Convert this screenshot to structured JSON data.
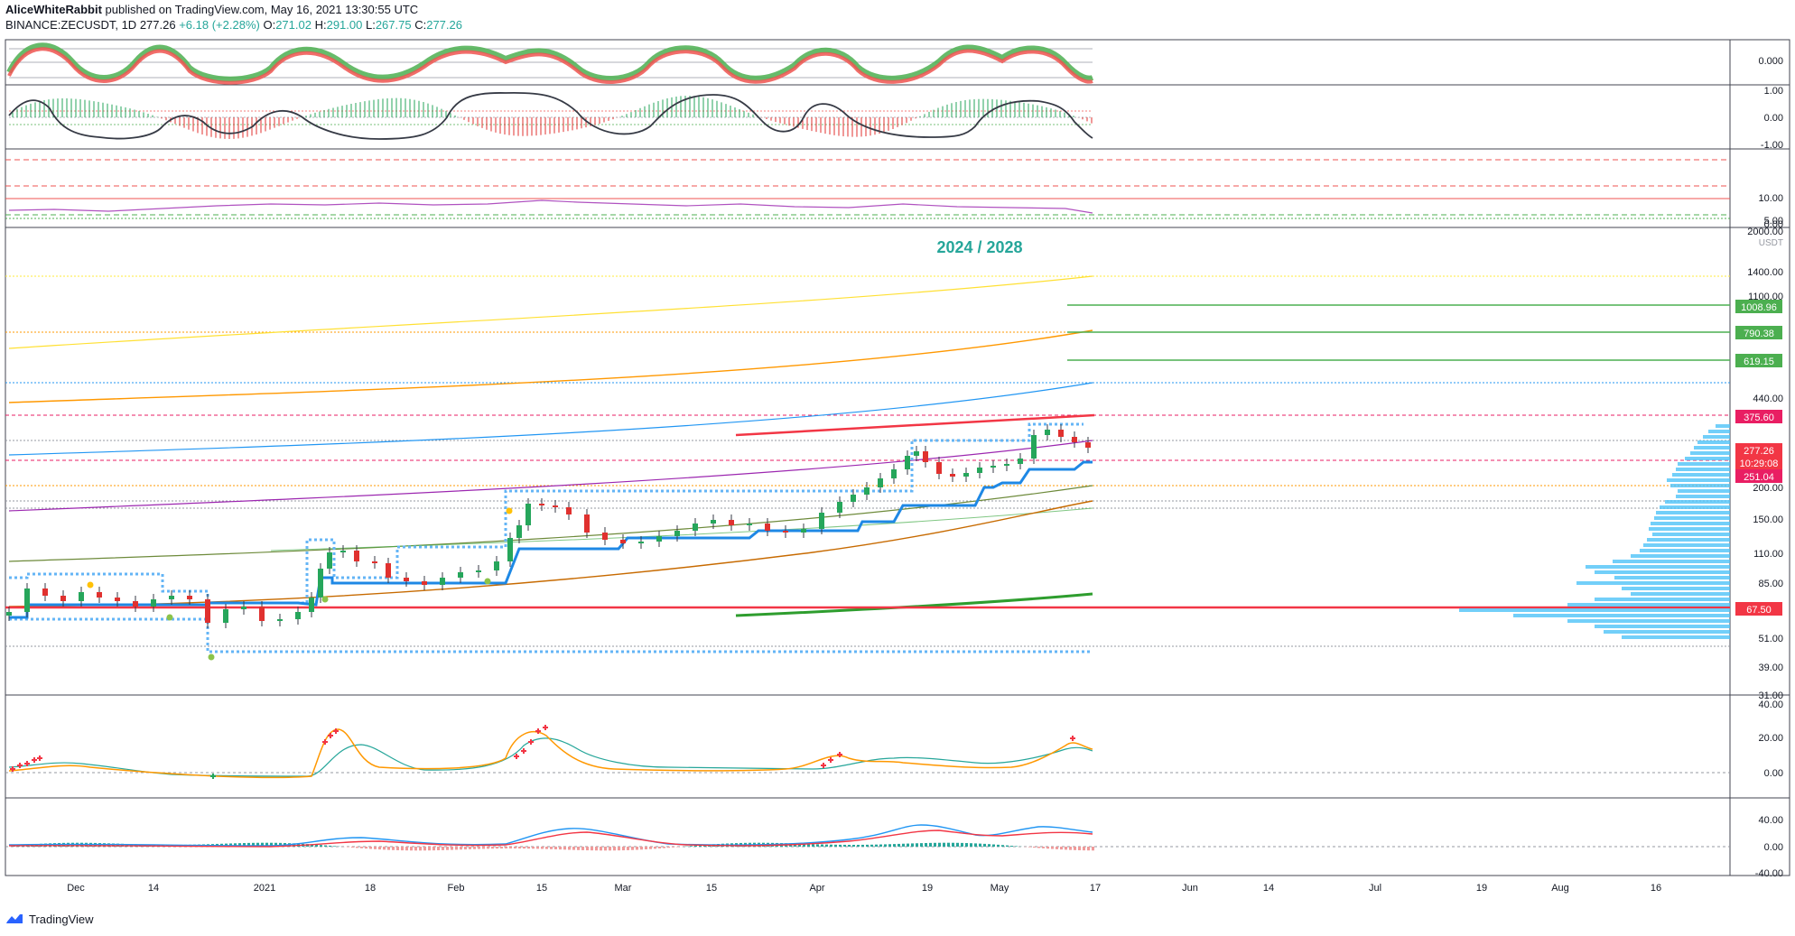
{
  "header": {
    "author": "AliceWhiteRabbit",
    "published": "published on TradingView.com, May 16, 2021 13:30:55 UTC",
    "symbol": "BINANCE:ZECUSDT, 1D",
    "last": "277.26",
    "change": "+6.18 (+2.28%)",
    "ohlc": {
      "o_label": "O:",
      "o": "271.02",
      "h_label": "H:",
      "h": "291.00",
      "l_label": "L:",
      "l": "267.75",
      "c_label": "C:",
      "c": "277.26"
    }
  },
  "main_pane": {
    "title": "2024 / 2028",
    "currency": "USDT",
    "price_axis_ticks": [
      "2000.00",
      "1400.00",
      "1100.00",
      "440.00",
      "200.00",
      "150.00",
      "110.00",
      "85.00",
      "51.00",
      "39.00",
      "31.00"
    ],
    "price_tags": [
      {
        "label": "1008.96",
        "color": "#4caf50"
      },
      {
        "label": "790.38",
        "color": "#4caf50"
      },
      {
        "label": "619.15",
        "color": "#4caf50"
      },
      {
        "label": "375.60",
        "color": "#e91e63"
      },
      {
        "label": "277.26",
        "color": "#f23645"
      },
      {
        "label": "10:29:08",
        "color": "#f23645"
      },
      {
        "label": "251.04",
        "color": "#e91e63"
      },
      {
        "label": "67.50",
        "color": "#f23645"
      }
    ]
  },
  "indicator_panes": [
    {
      "name": "oscillator-top",
      "ticks": [
        "0.000"
      ]
    },
    {
      "name": "oscillator-2",
      "ticks": [
        "1.00",
        "0.00",
        "-1.00"
      ]
    },
    {
      "name": "oscillator-3",
      "ticks": [
        "10.00",
        "5.00",
        "0.00"
      ]
    },
    {
      "name": "adx-pane",
      "ticks": [
        "40.00",
        "20.00",
        "0.00"
      ]
    },
    {
      "name": "macd-pane",
      "ticks": [
        "40.00",
        "0.00",
        "-40.00"
      ]
    }
  ],
  "time_axis": [
    "Dec",
    "14",
    "2021",
    "18",
    "Feb",
    "15",
    "Mar",
    "15",
    "Apr",
    "19",
    "May",
    "17",
    "Jun",
    "14",
    "Jul",
    "19",
    "Aug",
    "16"
  ],
  "footer": {
    "brand": "TradingView"
  },
  "colors": {
    "up": "#26a65b",
    "down": "#e0312f",
    "accent": "#2196f3",
    "title": "#26a69a"
  }
}
